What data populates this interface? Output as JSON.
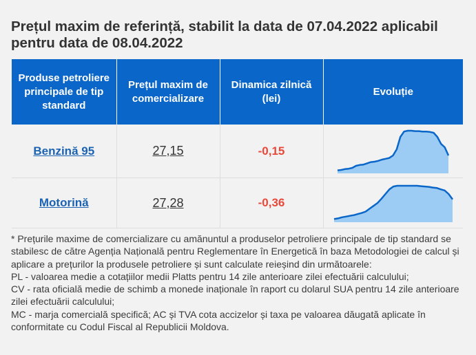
{
  "title": "Prețul maxim de referință, stabilit la data de 07.04.2022 aplicabil pentru data de 08.04.2022",
  "table": {
    "headers": [
      "Produse petroliere principale de tip standard",
      "Prețul maxim de comercializare",
      "Dinamica zilnică (lei)",
      "Evoluție"
    ],
    "rows": [
      {
        "product": "Benzină 95",
        "price": "27,15",
        "change": "-0,15",
        "trend": [
          0.04,
          0.05,
          0.07,
          0.08,
          0.1,
          0.15,
          0.17,
          0.18,
          0.21,
          0.24,
          0.25,
          0.27,
          0.3,
          0.32,
          0.34,
          0.4,
          0.55,
          0.85,
          0.98,
          1.0,
          1.0,
          0.99,
          0.99,
          0.98,
          0.98,
          0.97,
          0.95,
          0.85,
          0.68,
          0.6,
          0.4
        ]
      },
      {
        "product": "Motorină",
        "price": "27,28",
        "change": "-0,36",
        "trend": [
          0.05,
          0.07,
          0.1,
          0.12,
          0.14,
          0.16,
          0.19,
          0.22,
          0.26,
          0.34,
          0.42,
          0.5,
          0.62,
          0.75,
          0.88,
          0.96,
          0.98,
          0.98,
          0.98,
          0.98,
          0.98,
          0.98,
          0.97,
          0.96,
          0.95,
          0.93,
          0.92,
          0.88,
          0.85,
          0.75,
          0.6
        ]
      }
    ]
  },
  "notes": [
    "* Prețurile maxime de comercializare cu amănuntul a produselor petroliere principale de tip standard se stabilesc de către Agenția Națională pentru Reglementare în Energetică în baza Metodologiei de calcul și aplicare a prețurilor la produsele petroliere și sunt calculate reieșind din următoarele:",
    "PL - valoarea medie a cotațiilor medii Platts pentru 14 zile anterioare zilei efectuării calculului;",
    "CV - rata oficială medie de schimb a monede inaționale în raport cu dolarul SUA pentru 14 zile anterioare zilei efectuării calculului;",
    "MC - marja comercială specifică; AC și TVA cota accizelor și taxa pe valoarea dăugată aplicate în conformitate cu Codul Fiscal al Republicii Moldova."
  ],
  "colors": {
    "header_bg": "#0a66c8",
    "link": "#1b63b2",
    "negative": "#e8483a",
    "spark_line": "#0a66c8",
    "spark_fill": "#9ccbf3"
  }
}
